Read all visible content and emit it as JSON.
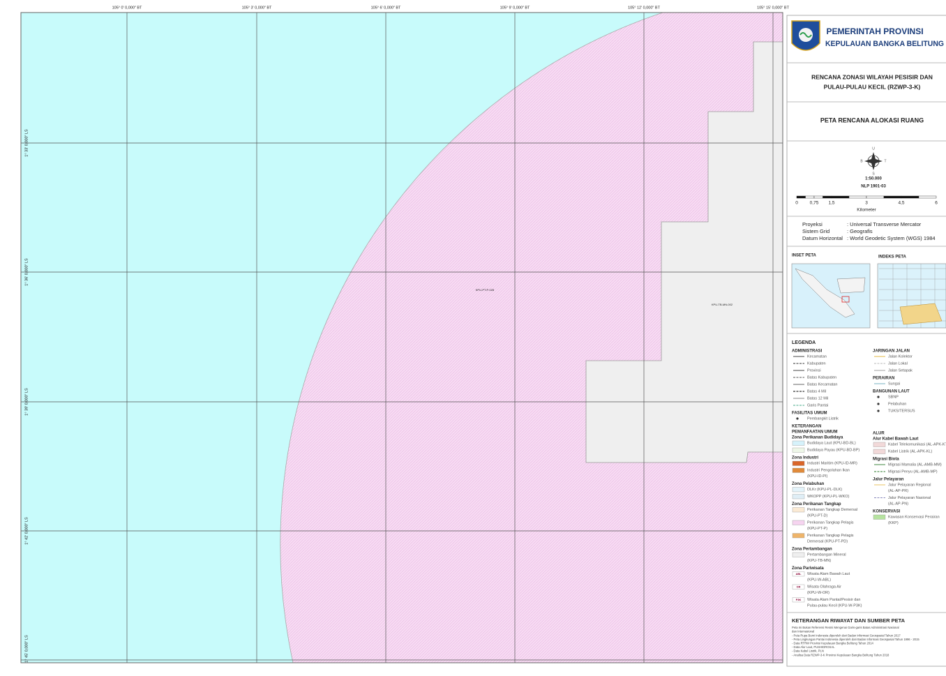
{
  "map": {
    "lon_labels": [
      "105° 0' 0,000\" BT",
      "105° 3' 0,000\" BT",
      "105° 6' 0,000\" BT",
      "105° 9' 0,000\" BT",
      "105° 12' 0,000\" BT",
      "105° 15' 0,000\" BT"
    ],
    "lat_labels": [
      "1° 33' 0,000\" LS",
      "1° 36' 0,000\" LS",
      "1° 39' 0,000\" LS",
      "1° 42' 0,000\" LS",
      "1° 45' 0,000\" LS"
    ],
    "zone_labels": [
      "KPU-PT-P-028",
      "KPU-TB-MN-002"
    ]
  },
  "panel": {
    "header": [
      "PEMERINTAH PROVINSI",
      "KEPULAUAN BANGKA BELITUNG"
    ],
    "plan_title": [
      "RENCANA ZONASI WILAYAH PESISIR DAN",
      "PULAU-PULAU KECIL (RZWP-3-K)"
    ],
    "map_title": "PETA RENCANA ALOKASI RUANG",
    "compass": [
      "U",
      "S",
      "B",
      "T"
    ],
    "scale": "1:50.000",
    "sheet": "NLP 1901-03",
    "scale_bar": [
      "0",
      "0,75",
      "1,5",
      "3",
      "4,5",
      "6"
    ],
    "scale_unit": "Kilometer",
    "projection": [
      [
        "Proyeksi",
        ": Universal Transverse Mercator"
      ],
      [
        "Sistem Grid",
        ": Geografis"
      ],
      [
        "Datum Horizontal",
        ": World Geodetic System (WGS) 1984"
      ]
    ],
    "inset_title": "INSET PETA",
    "index_title": "INDEKS PETA"
  },
  "legend": {
    "title": "LEGENDA",
    "left": [
      {
        "heading": [
          "ADMINISTRASI"
        ],
        "items": [
          [
            "Kecamatan"
          ],
          [
            "Kabupaten"
          ],
          [
            "Provinsi"
          ],
          [
            "Batas Kabupaten"
          ],
          [
            "Batas Kecamatan"
          ],
          [
            "Batas 4 Mil"
          ],
          [
            "Batas 12 Mil"
          ],
          [
            "Garis Pantai"
          ]
        ]
      },
      {
        "heading": [
          "FASILITAS UMUM"
        ],
        "items": [
          [
            "Pembangkit Listrik"
          ]
        ]
      },
      {
        "heading": [
          "KETERANGAN",
          "PEMANFAATAN UMUM",
          "Zona Perikanan Budidaya"
        ],
        "items": [
          [
            "Budidaya Laut (KPU-BD-BL)"
          ],
          [
            "Budidaya Payau (KPU-BD-BP)"
          ]
        ]
      },
      {
        "heading": [
          "Zona Industri"
        ],
        "items": [
          [
            "Industri Maritim (KPU-ID-MR)"
          ],
          [
            "Industri Pengolahan Ikan",
            "(KPU-ID-PI)"
          ]
        ]
      },
      {
        "heading": [
          "Zona Pelabuhan"
        ],
        "items": [
          [
            "DLKr (KPU-PL-DLK)"
          ],
          [
            "WKOPP (KPU-PL-WKO)"
          ]
        ]
      },
      {
        "heading": [
          "Zona Perikanan Tangkap"
        ],
        "items": [
          [
            "Perikanan Tangkap Demersal",
            "(KPU-PT-D)"
          ],
          [
            "Perikanan Tangkap Pelagis",
            "(KPU-PT-P)"
          ],
          [
            "Perikanan Tangkap Pelagis",
            "Demersal (KPU-PT-PD)"
          ]
        ]
      },
      {
        "heading": [
          "Zona Pertambangan"
        ],
        "items": [
          [
            "Pertambangan Mineral",
            "(KPU-TB-MN)"
          ]
        ]
      },
      {
        "heading": [
          "Zona Pariwisata"
        ],
        "items": [
          [
            "Wisata Alam Bawah Laut",
            "(KPU-W-ABL)"
          ],
          [
            "Wisata Olahraga Air",
            "(KPU-W-OR)"
          ],
          [
            "Wisata Alam Pantai/Pesisir dan",
            "Pulau-pulau Kecil (KPU-W-P3K)"
          ]
        ],
        "codes": [
          "ABL",
          "OR",
          "P3K"
        ]
      }
    ],
    "right_top": [
      {
        "heading": [
          "JARINGAN JALAN"
        ],
        "items": [
          [
            "Jalan Kolektor"
          ],
          [
            "Jalan Lokal"
          ],
          [
            "Jalan Setapak"
          ]
        ]
      },
      {
        "heading": [
          "PERAIRAN"
        ],
        "items": [
          [
            "Sungai"
          ]
        ]
      },
      {
        "heading": [
          "BANGUNAN LAUT"
        ],
        "items": [
          [
            "SBNP"
          ],
          [
            "Pelabuhan"
          ],
          [
            "TUKS/TERSUS"
          ]
        ]
      }
    ],
    "right_bottom": [
      {
        "heading": [
          "ALUR",
          "Alur Kabel Bawah Laut"
        ],
        "items": [
          [
            "Kabel Telekomunikasi (AL-APK-KT)"
          ],
          [
            "Kabel Listrik (AL-APK-KL)"
          ]
        ]
      },
      {
        "heading": [
          "Migrasi Biota"
        ],
        "items": [
          [
            "Migrasi Mamalia (AL-AMB-MM)"
          ],
          [
            "Migrasi Penyu (AL-AMB-MP)"
          ]
        ]
      },
      {
        "heading": [
          "Jalur Pelayaran"
        ],
        "items": [
          [
            "Jalur Pelayaran Regional",
            "(AL-AP-PR)"
          ],
          [
            "Jalur Pelayaran Nasional",
            "(AL-AP-PN)"
          ]
        ]
      },
      {
        "heading": [
          "KONSERVASI"
        ],
        "items": [
          [
            "Kawasan Konservasi Perairan",
            "(KKP)"
          ]
        ]
      }
    ]
  },
  "sources": {
    "title": "KETERANGAN RIWAYAT DAN SUMBER PETA",
    "lines": [
      "Peta Ini Bukan Referensi Resmi Mengenai Garis-garis Batas Administrasi Nasional",
      "dan Internasional",
      "- Peta Rupa Bumi Indonesia diperoleh dari Badan Informasi Geospasial Tahun 2017",
      "- Peta Lingkungan Pantai Indonesia diperoleh dari Badan Informasi Geospasial Tahun 1996 - 2015",
      "- Data RTRW Provinsi Kepulauan Bangka Belitung Tahun 2014",
      "- Data Alur Laut, PUSHIDROSAL",
      "- Data Kabel Listrik, PLN",
      "- Analisa Data RZWP-3-K Provinsi Kepulauan Bangka Belitung Tahun 2018"
    ]
  }
}
